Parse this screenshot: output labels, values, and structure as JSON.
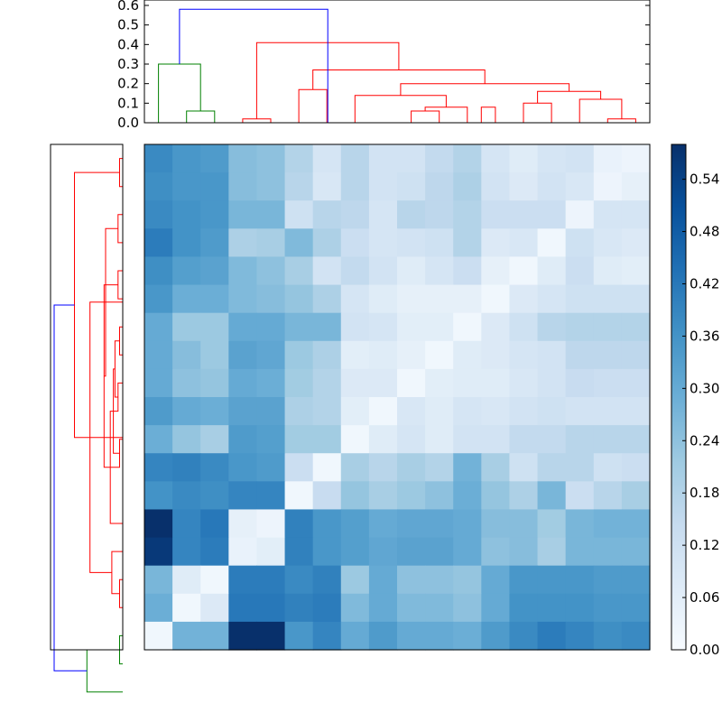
{
  "chart_data": [
    {
      "type": "dendrogram",
      "orientation": "top",
      "ylim": [
        0,
        0.6
      ],
      "yticks": [
        "0.0",
        "0.1",
        "0.2",
        "0.3",
        "0.4",
        "0.5",
        "0.6"
      ],
      "leaf_count": 18,
      "colors": {
        "root": "#0000ff",
        "cluster_a": "#008000",
        "cluster_b": "#ff0000"
      },
      "links": [
        {
          "left": 1,
          "right": 2,
          "height": 0.06,
          "color": "#008000"
        },
        {
          "left": 0,
          "right": 1.5,
          "height": 0.3,
          "color": "#008000"
        },
        {
          "left": 3,
          "right": 4,
          "height": 0.02,
          "color": "#ff0000"
        },
        {
          "left": 5,
          "right": 6,
          "height": 0.17,
          "color": "#ff0000"
        },
        {
          "left": 9,
          "right": 10,
          "height": 0.06,
          "color": "#ff0000"
        },
        {
          "left": 9.5,
          "right": 11,
          "height": 0.08,
          "color": "#ff0000"
        },
        {
          "left": 7,
          "right": 10.25,
          "height": 0.14,
          "color": "#ff0000"
        },
        {
          "left": 11.5,
          "right": 12,
          "height": 0.08,
          "color": "#ff0000"
        },
        {
          "left": 13,
          "right": 14,
          "height": 0.1,
          "color": "#ff0000"
        },
        {
          "left": 16,
          "right": 17,
          "height": 0.02,
          "color": "#ff0000"
        },
        {
          "left": 15,
          "right": 16.5,
          "height": 0.12,
          "color": "#ff0000"
        },
        {
          "left": 13.5,
          "right": 15.75,
          "height": 0.16,
          "color": "#ff0000"
        },
        {
          "left": 8.625,
          "right": 14.625,
          "height": 0.2,
          "color": "#ff0000"
        },
        {
          "left": 5.5,
          "right": 11.625,
          "height": 0.27,
          "color": "#ff0000"
        },
        {
          "left": 3.5,
          "right": 8.5625,
          "height": 0.41,
          "color": "#ff0000"
        },
        {
          "left": 0.75,
          "right": 6.03,
          "height": 0.58,
          "color": "#0000ff"
        }
      ]
    },
    {
      "type": "dendrogram",
      "orientation": "left",
      "leaf_count": 18,
      "colors": {
        "root": "#0000ff",
        "cluster_a": "#008000",
        "cluster_b": "#ff0000"
      },
      "links": [
        {
          "left": 0,
          "right": 1,
          "height": 0.02,
          "color": "#ff0000"
        },
        {
          "left": 2,
          "right": 3,
          "height": 0.03,
          "color": "#ff0000"
        },
        {
          "left": 4,
          "right": 5,
          "height": 0.03,
          "color": "#ff0000"
        },
        {
          "left": 6,
          "right": 7,
          "height": 0.02,
          "color": "#ff0000"
        },
        {
          "left": 8,
          "right": 9,
          "height": 0.03,
          "color": "#ff0000"
        },
        {
          "left": 10,
          "right": 11,
          "height": 0.02,
          "color": "#ff0000"
        },
        {
          "left": 6.5,
          "right": 8.5,
          "height": 0.05,
          "color": "#ff0000"
        },
        {
          "left": 7.5,
          "right": 10.5,
          "height": 0.06,
          "color": "#ff0000"
        },
        {
          "left": 9,
          "right": 13,
          "height": 0.08,
          "color": "#ff0000"
        },
        {
          "left": 4.5,
          "right": 11,
          "height": 0.12,
          "color": "#ff0000"
        },
        {
          "left": 15,
          "right": 16,
          "height": 0.02,
          "color": "#ff0000"
        },
        {
          "left": 14,
          "right": 15.5,
          "height": 0.07,
          "color": "#ff0000"
        },
        {
          "left": 2.5,
          "right": 7.75,
          "height": 0.11,
          "color": "#ff0000"
        },
        {
          "left": 5.12,
          "right": 14.75,
          "height": 0.21,
          "color": "#ff0000"
        },
        {
          "left": 0.5,
          "right": 9.94,
          "height": 0.31,
          "color": "#ff0000"
        },
        {
          "left": 17,
          "right": 18,
          "height": 0.02,
          "color": "#008000"
        },
        {
          "left": 17.5,
          "right": 19,
          "height": 0.23,
          "color": "#008000"
        },
        {
          "left": 5.22,
          "right": 18.25,
          "height": 0.44,
          "color": "#0000ff"
        }
      ]
    },
    {
      "type": "heatmap",
      "rows": 18,
      "cols": 18,
      "colormap": [
        "#f7fbff",
        "#deebf7",
        "#c6dbef",
        "#9ecae1",
        "#6baed6",
        "#4292c6",
        "#2171b5",
        "#08519c",
        "#08306b"
      ],
      "vmin": 0,
      "vmax": 0.58,
      "values": [
        [
          0.38,
          0.35,
          0.34,
          0.25,
          0.24,
          0.18,
          0.1,
          0.17,
          0.11,
          0.11,
          0.15,
          0.18,
          0.1,
          0.07,
          0.1,
          0.11,
          0.04,
          0.03
        ],
        [
          0.37,
          0.35,
          0.35,
          0.25,
          0.24,
          0.17,
          0.09,
          0.17,
          0.11,
          0.12,
          0.16,
          0.19,
          0.11,
          0.08,
          0.11,
          0.09,
          0.03,
          0.05
        ],
        [
          0.38,
          0.36,
          0.35,
          0.27,
          0.27,
          0.12,
          0.17,
          0.16,
          0.1,
          0.17,
          0.16,
          0.18,
          0.13,
          0.13,
          0.13,
          0.03,
          0.1,
          0.1
        ],
        [
          0.41,
          0.36,
          0.34,
          0.19,
          0.2,
          0.26,
          0.19,
          0.13,
          0.1,
          0.11,
          0.12,
          0.18,
          0.08,
          0.09,
          0.02,
          0.12,
          0.09,
          0.08
        ],
        [
          0.37,
          0.33,
          0.32,
          0.26,
          0.24,
          0.2,
          0.11,
          0.15,
          0.11,
          0.07,
          0.1,
          0.13,
          0.05,
          0.02,
          0.07,
          0.13,
          0.07,
          0.06
        ],
        [
          0.35,
          0.29,
          0.29,
          0.26,
          0.25,
          0.23,
          0.19,
          0.1,
          0.07,
          0.05,
          0.05,
          0.05,
          0.02,
          0.08,
          0.1,
          0.12,
          0.12,
          0.12
        ],
        [
          0.3,
          0.22,
          0.22,
          0.3,
          0.3,
          0.27,
          0.27,
          0.11,
          0.1,
          0.06,
          0.06,
          0.02,
          0.08,
          0.12,
          0.17,
          0.18,
          0.18,
          0.18
        ],
        [
          0.3,
          0.25,
          0.22,
          0.32,
          0.31,
          0.22,
          0.19,
          0.06,
          0.07,
          0.05,
          0.02,
          0.07,
          0.08,
          0.1,
          0.11,
          0.16,
          0.16,
          0.16
        ],
        [
          0.3,
          0.24,
          0.23,
          0.3,
          0.29,
          0.21,
          0.18,
          0.08,
          0.08,
          0.02,
          0.06,
          0.07,
          0.07,
          0.09,
          0.11,
          0.14,
          0.13,
          0.13
        ],
        [
          0.34,
          0.3,
          0.29,
          0.32,
          0.32,
          0.19,
          0.18,
          0.06,
          0.02,
          0.09,
          0.07,
          0.1,
          0.09,
          0.11,
          0.12,
          0.11,
          0.11,
          0.11
        ],
        [
          0.29,
          0.23,
          0.2,
          0.34,
          0.33,
          0.21,
          0.21,
          0.02,
          0.07,
          0.1,
          0.07,
          0.11,
          0.11,
          0.15,
          0.15,
          0.17,
          0.17,
          0.17
        ],
        [
          0.39,
          0.4,
          0.38,
          0.35,
          0.34,
          0.13,
          0.02,
          0.2,
          0.17,
          0.2,
          0.18,
          0.28,
          0.2,
          0.12,
          0.17,
          0.17,
          0.12,
          0.13
        ],
        [
          0.36,
          0.38,
          0.37,
          0.39,
          0.39,
          0.02,
          0.14,
          0.23,
          0.2,
          0.22,
          0.24,
          0.29,
          0.23,
          0.19,
          0.27,
          0.13,
          0.17,
          0.2
        ],
        [
          0.58,
          0.39,
          0.42,
          0.05,
          0.03,
          0.4,
          0.35,
          0.33,
          0.3,
          0.31,
          0.31,
          0.3,
          0.25,
          0.25,
          0.21,
          0.27,
          0.28,
          0.28
        ],
        [
          0.56,
          0.39,
          0.41,
          0.04,
          0.06,
          0.4,
          0.35,
          0.33,
          0.31,
          0.32,
          0.32,
          0.3,
          0.24,
          0.25,
          0.2,
          0.27,
          0.27,
          0.27
        ],
        [
          0.27,
          0.07,
          0.02,
          0.41,
          0.41,
          0.38,
          0.4,
          0.22,
          0.3,
          0.24,
          0.24,
          0.23,
          0.3,
          0.35,
          0.35,
          0.35,
          0.34,
          0.34
        ],
        [
          0.29,
          0.02,
          0.08,
          0.42,
          0.42,
          0.4,
          0.41,
          0.26,
          0.3,
          0.26,
          0.26,
          0.24,
          0.3,
          0.36,
          0.36,
          0.36,
          0.35,
          0.35
        ],
        [
          0.02,
          0.28,
          0.28,
          0.58,
          0.58,
          0.35,
          0.39,
          0.3,
          0.34,
          0.3,
          0.3,
          0.29,
          0.34,
          0.38,
          0.41,
          0.39,
          0.37,
          0.38
        ]
      ]
    },
    {
      "type": "colorbar",
      "range": [
        0,
        0.58
      ],
      "ticks": [
        "0.00",
        "0.06",
        "0.12",
        "0.18",
        "0.24",
        "0.30",
        "0.36",
        "0.42",
        "0.48",
        "0.54"
      ]
    }
  ]
}
